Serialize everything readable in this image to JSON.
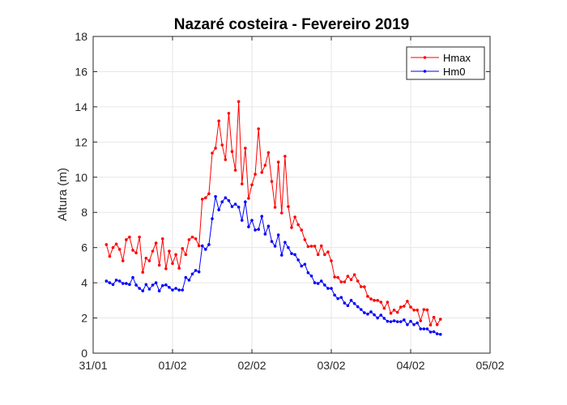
{
  "chart_data": {
    "type": "line",
    "title": "Nazaré costeira - Fevereiro  2019",
    "xlabel": "",
    "ylabel": "Altura (m)",
    "x_start": "2019-01-31 04:00",
    "x_interval_hours": 1,
    "xlim": [
      "2019-01-31 00:00",
      "2019-02-05 00:00"
    ],
    "xticks": [
      "31/01",
      "01/02",
      "02/02",
      "03/02",
      "04/02",
      "05/02"
    ],
    "ylim": [
      0,
      18
    ],
    "yticks": [
      "0",
      "2",
      "4",
      "6",
      "8",
      "10",
      "12",
      "14",
      "16",
      "18"
    ],
    "grid": true,
    "legend_position": "top-right",
    "series": [
      {
        "name": "Hmax",
        "color": "#ff0000",
        "values": [
          6.17,
          5.5,
          6.0,
          6.2,
          5.9,
          5.25,
          6.45,
          6.6,
          5.85,
          5.7,
          6.6,
          4.6,
          5.4,
          5.25,
          5.8,
          6.26,
          5.0,
          6.5,
          4.8,
          5.8,
          5.1,
          5.6,
          4.83,
          5.95,
          5.6,
          6.45,
          6.6,
          6.5,
          6.1,
          8.75,
          8.83,
          9.06,
          11.37,
          11.65,
          13.2,
          11.83,
          11.0,
          13.63,
          11.46,
          10.4,
          14.3,
          9.62,
          11.65,
          8.8,
          9.57,
          10.17,
          12.75,
          10.27,
          10.68,
          11.4,
          9.76,
          8.29,
          10.86,
          7.97,
          11.19,
          8.33,
          7.14,
          7.74,
          7.3,
          7.0,
          6.45,
          6.06,
          6.08,
          6.08,
          5.6,
          6.1,
          5.6,
          5.75,
          5.25,
          4.33,
          4.3,
          4.05,
          4.05,
          4.37,
          4.18,
          4.46,
          4.1,
          3.78,
          3.77,
          3.23,
          3.08,
          3.0,
          3.0,
          2.9,
          2.55,
          2.9,
          2.27,
          2.45,
          2.32,
          2.62,
          2.67,
          2.95,
          2.62,
          2.45,
          2.45,
          1.84,
          2.48,
          2.46,
          1.6,
          2.04,
          1.62,
          1.93
        ]
      },
      {
        "name": "Hm0",
        "color": "#0000ff",
        "values": [
          4.1,
          4.0,
          3.9,
          4.15,
          4.1,
          3.96,
          3.96,
          3.9,
          4.3,
          3.87,
          3.68,
          3.54,
          3.9,
          3.64,
          3.87,
          4.0,
          3.54,
          3.84,
          3.88,
          3.74,
          3.59,
          3.68,
          3.59,
          3.59,
          4.3,
          4.15,
          4.5,
          4.7,
          4.62,
          6.1,
          5.9,
          6.17,
          7.64,
          8.9,
          8.15,
          8.6,
          8.83,
          8.67,
          8.33,
          8.47,
          8.3,
          7.55,
          8.6,
          7.18,
          7.55,
          7.0,
          7.04,
          7.78,
          6.77,
          7.22,
          6.35,
          6.08,
          6.72,
          5.57,
          6.3,
          6.0,
          5.66,
          5.6,
          5.3,
          4.95,
          5.05,
          4.57,
          4.39,
          4.0,
          3.96,
          4.1,
          3.87,
          3.68,
          3.68,
          3.3,
          3.1,
          3.17,
          2.85,
          2.7,
          3.0,
          2.82,
          2.64,
          2.48,
          2.3,
          2.22,
          2.35,
          2.18,
          2.0,
          2.16,
          1.98,
          1.81,
          1.79,
          1.84,
          1.79,
          1.79,
          1.89,
          1.62,
          1.81,
          1.62,
          1.72,
          1.38,
          1.38,
          1.38,
          1.2,
          1.22,
          1.1,
          1.07
        ]
      }
    ]
  }
}
